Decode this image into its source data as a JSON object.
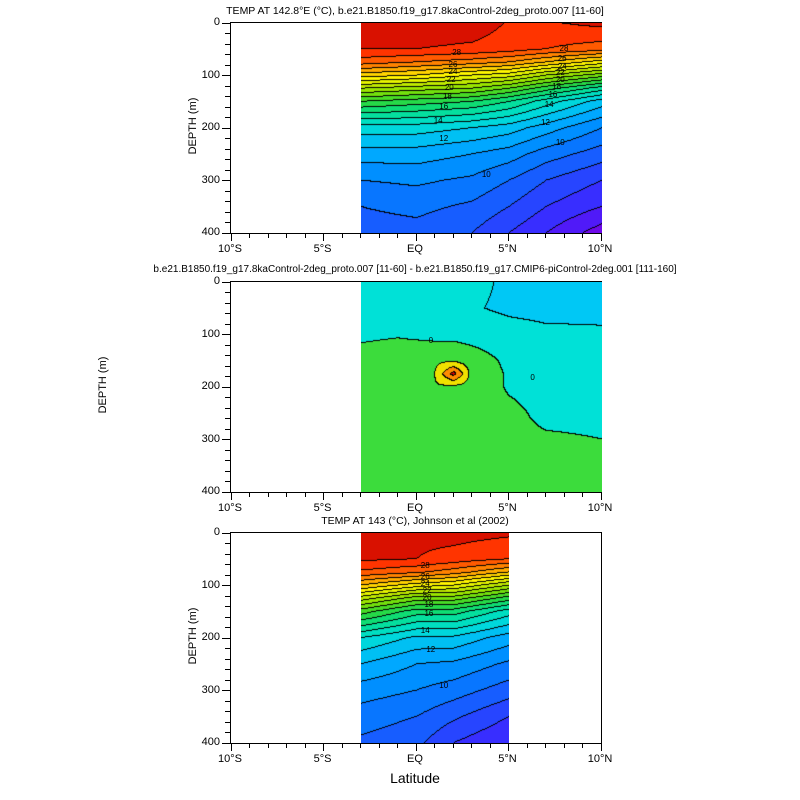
{
  "chart_data": {
    "type": "heatmap",
    "subtype": "filled-contour-latitude-depth-section",
    "xlabel": "Latitude",
    "x_axis": {
      "min": -10,
      "max": 10,
      "tick_values": [
        -10,
        -5,
        0,
        5,
        10
      ],
      "tick_labels": [
        "10°S",
        "5°S",
        "EQ",
        "5°N",
        "10°N"
      ],
      "minor_tick_step": 1
    },
    "y_axis": {
      "label": "DEPTH (m)",
      "min": 0,
      "max": 400,
      "tick_values": [
        0,
        100,
        200,
        300,
        400
      ],
      "minor_tick_step": 20
    },
    "panels": [
      {
        "title": "TEMP AT 142.8°E (°C), b.e21.B1850.f19_g17.8kaControl-2deg_proto.007 [11-60]",
        "ylabel": "DEPTH (m)",
        "levels": [
          5,
          6,
          7,
          8,
          9,
          10,
          11,
          12,
          13,
          14,
          15,
          16,
          17,
          18,
          19,
          20,
          21,
          22,
          23,
          24,
          25,
          26,
          27,
          28,
          29
        ],
        "color_stops": [
          [
            4,
            "#7d00e1"
          ],
          [
            6,
            "#4123ff"
          ],
          [
            8,
            "#1e50ff"
          ],
          [
            10,
            "#0082ff"
          ],
          [
            12,
            "#00b4ff"
          ],
          [
            13.5,
            "#00d7dc"
          ],
          [
            15,
            "#00e1b4"
          ],
          [
            16.5,
            "#0fdc73"
          ],
          [
            18,
            "#32d732"
          ],
          [
            20,
            "#87e100"
          ],
          [
            22,
            "#d2eb00"
          ],
          [
            23.2,
            "#ffff00"
          ],
          [
            24.5,
            "#ffd200"
          ],
          [
            26,
            "#ff9600"
          ],
          [
            27.5,
            "#ff5a00"
          ],
          [
            28.8,
            "#ff2800"
          ],
          [
            30,
            "#be0000"
          ]
        ],
        "grid": {
          "lats": [
            -3,
            0,
            3,
            5,
            7,
            10
          ],
          "depths": [
            0,
            50,
            75,
            100,
            125,
            150,
            200,
            250,
            300,
            350,
            400
          ],
          "values": [
            [
              29.5,
              29.7,
              29.6,
              28.9,
              28.9,
              29.3
            ],
            [
              29.0,
              29.0,
              28.8,
              28.5,
              28.0,
              27.5
            ],
            [
              27.5,
              27.0,
              26.5,
              26.0,
              25.0,
              23.5
            ],
            [
              24.5,
              24.0,
              23.0,
              22.5,
              21.0,
              19.5
            ],
            [
              21.0,
              20.5,
              20.0,
              19.0,
              17.5,
              15.5
            ],
            [
              18.0,
              17.5,
              17.0,
              16.0,
              14.5,
              12.5
            ],
            [
              13.5,
              13.5,
              13.0,
              12.5,
              11.5,
              10.0
            ],
            [
              11.5,
              11.5,
              11.0,
              10.5,
              9.5,
              8.5
            ],
            [
              10.0,
              10.2,
              9.8,
              9.0,
              8.0,
              7.0
            ],
            [
              9.0,
              9.3,
              8.8,
              8.0,
              7.0,
              6.0
            ],
            [
              8.5,
              8.6,
              8.0,
              7.0,
              6.0,
              4.5
            ]
          ]
        },
        "line_labels": [
          {
            "text": "28",
            "lat": 2.2,
            "depth": 58
          },
          {
            "text": "26",
            "lat": 2.0,
            "depth": 80
          },
          {
            "text": "24",
            "lat": 2.0,
            "depth": 94
          },
          {
            "text": "22",
            "lat": 1.9,
            "depth": 108
          },
          {
            "text": "20",
            "lat": 1.8,
            "depth": 124
          },
          {
            "text": "18",
            "lat": 1.7,
            "depth": 141
          },
          {
            "text": "16",
            "lat": 1.5,
            "depth": 160
          },
          {
            "text": "14",
            "lat": 1.2,
            "depth": 186
          },
          {
            "text": "12",
            "lat": 1.5,
            "depth": 220
          },
          {
            "text": "28",
            "lat": 8.0,
            "depth": 50
          },
          {
            "text": "26",
            "lat": 7.9,
            "depth": 68
          },
          {
            "text": "24",
            "lat": 7.9,
            "depth": 83
          },
          {
            "text": "22",
            "lat": 7.8,
            "depth": 95
          },
          {
            "text": "20",
            "lat": 7.8,
            "depth": 108
          },
          {
            "text": "18",
            "lat": 7.6,
            "depth": 121
          },
          {
            "text": "16",
            "lat": 7.4,
            "depth": 137
          },
          {
            "text": "14",
            "lat": 7.2,
            "depth": 157
          },
          {
            "text": "12",
            "lat": 7.0,
            "depth": 190
          },
          {
            "text": "10",
            "lat": 7.8,
            "depth": 228
          },
          {
            "text": "10",
            "lat": 3.8,
            "depth": 290
          }
        ]
      },
      {
        "title": "b.e21.B1850.f19_g17.8kaControl-2deg_proto.007 [11-60] - b.e21.B1850.f19_g17.CMIP6-piControl-2deg.001 [111-160]",
        "ylabel": "DEPTH (m)",
        "levels": [
          -4,
          -3,
          -2,
          -1,
          0,
          1,
          2,
          3,
          4
        ],
        "color_stops": [
          [
            -3.5,
            "#0064ff"
          ],
          [
            -2.5,
            "#00a0ff"
          ],
          [
            -1.5,
            "#00c8f5"
          ],
          [
            -0.5,
            "#00e1d7"
          ],
          [
            0.5,
            "#3cdc3c"
          ],
          [
            1.5,
            "#f0e100"
          ],
          [
            2.5,
            "#ff8c00"
          ],
          [
            3.5,
            "#e10000"
          ]
        ],
        "grid": {
          "lats": [
            -3,
            -1,
            1,
            2,
            3,
            5,
            7,
            10
          ],
          "depths": [
            0,
            50,
            100,
            150,
            175,
            200,
            250,
            300,
            350,
            400
          ],
          "values": [
            [
              -0.4,
              -0.5,
              -0.6,
              -0.6,
              -0.7,
              -1.2,
              -1.3,
              -1.3
            ],
            [
              -0.4,
              -0.5,
              -0.6,
              -0.6,
              -0.9,
              -1.2,
              -1.3,
              -1.2
            ],
            [
              -0.2,
              -0.1,
              -0.3,
              -0.3,
              -0.4,
              -0.6,
              -0.8,
              -0.9
            ],
            [
              0.4,
              0.6,
              0.8,
              0.8,
              0.5,
              -0.2,
              -0.4,
              -0.4
            ],
            [
              0.5,
              0.7,
              1.0,
              3.4,
              0.6,
              -0.1,
              -0.3,
              -0.3
            ],
            [
              0.5,
              0.8,
              0.9,
              0.8,
              0.6,
              -0.1,
              -0.3,
              -0.3
            ],
            [
              0.5,
              0.6,
              0.7,
              0.7,
              0.5,
              0.2,
              -0.2,
              -0.2
            ],
            [
              0.3,
              0.3,
              0.4,
              0.4,
              0.3,
              0.2,
              0.1,
              0.0
            ],
            [
              0.4,
              0.4,
              0.4,
              0.4,
              0.3,
              0.3,
              0.2,
              0.1
            ],
            [
              0.4,
              0.4,
              0.4,
              0.4,
              0.3,
              0.3,
              0.2,
              0.2
            ]
          ]
        },
        "line_labels": [
          {
            "text": "0",
            "lat": 0.8,
            "depth": 113
          },
          {
            "text": "0",
            "lat": 6.3,
            "depth": 182
          }
        ]
      },
      {
        "title": "TEMP AT 143 (°C), Johnson et al (2002)",
        "ylabel": "DEPTH (m)",
        "levels": [
          5,
          6,
          7,
          8,
          9,
          10,
          11,
          12,
          13,
          14,
          15,
          16,
          17,
          18,
          19,
          20,
          21,
          22,
          23,
          24,
          25,
          26,
          27,
          28,
          29
        ],
        "color_stops": [
          [
            4,
            "#7d00e1"
          ],
          [
            6,
            "#4123ff"
          ],
          [
            8,
            "#1e50ff"
          ],
          [
            10,
            "#0082ff"
          ],
          [
            12,
            "#00b4ff"
          ],
          [
            13.5,
            "#00d7dc"
          ],
          [
            15,
            "#00e1b4"
          ],
          [
            16.5,
            "#0fdc73"
          ],
          [
            18,
            "#32d732"
          ],
          [
            20,
            "#87e100"
          ],
          [
            22,
            "#d2eb00"
          ],
          [
            23.2,
            "#ffff00"
          ],
          [
            24.5,
            "#ffd200"
          ],
          [
            26,
            "#ff9600"
          ],
          [
            27.5,
            "#ff5a00"
          ],
          [
            28.8,
            "#ff2800"
          ],
          [
            30,
            "#be0000"
          ]
        ],
        "grid": {
          "lats": [
            -3,
            0,
            2,
            5
          ],
          "depths": [
            0,
            50,
            75,
            100,
            125,
            150,
            200,
            250,
            300,
            350,
            400
          ],
          "values": [
            [
              29.5,
              29.3,
              29.4,
              29.2
            ],
            [
              29.2,
              29.0,
              28.6,
              28.0
            ],
            [
              27.8,
              27.2,
              26.5,
              25.0
            ],
            [
              25.0,
              23.5,
              23.0,
              21.0
            ],
            [
              21.5,
              19.5,
              19.5,
              17.5
            ],
            [
              18.5,
              16.5,
              16.5,
              14.5
            ],
            [
              14.0,
              12.8,
              12.8,
              11.5
            ],
            [
              12.0,
              11.0,
              10.8,
              9.8
            ],
            [
              10.5,
              10.0,
              9.5,
              8.5
            ],
            [
              9.5,
              9.0,
              8.2,
              7.0
            ],
            [
              8.8,
              8.3,
              7.0,
              6.0
            ]
          ]
        },
        "line_labels": [
          {
            "text": "28",
            "lat": 0.5,
            "depth": 63
          },
          {
            "text": "26",
            "lat": 0.5,
            "depth": 84
          },
          {
            "text": "24",
            "lat": 0.5,
            "depth": 98
          },
          {
            "text": "22",
            "lat": 0.6,
            "depth": 111
          },
          {
            "text": "20",
            "lat": 0.6,
            "depth": 123
          },
          {
            "text": "18",
            "lat": 0.7,
            "depth": 137
          },
          {
            "text": "16",
            "lat": 0.7,
            "depth": 155
          },
          {
            "text": "14",
            "lat": 0.5,
            "depth": 187
          },
          {
            "text": "12",
            "lat": 0.8,
            "depth": 222
          },
          {
            "text": "10",
            "lat": 1.5,
            "depth": 292
          }
        ]
      }
    ]
  }
}
